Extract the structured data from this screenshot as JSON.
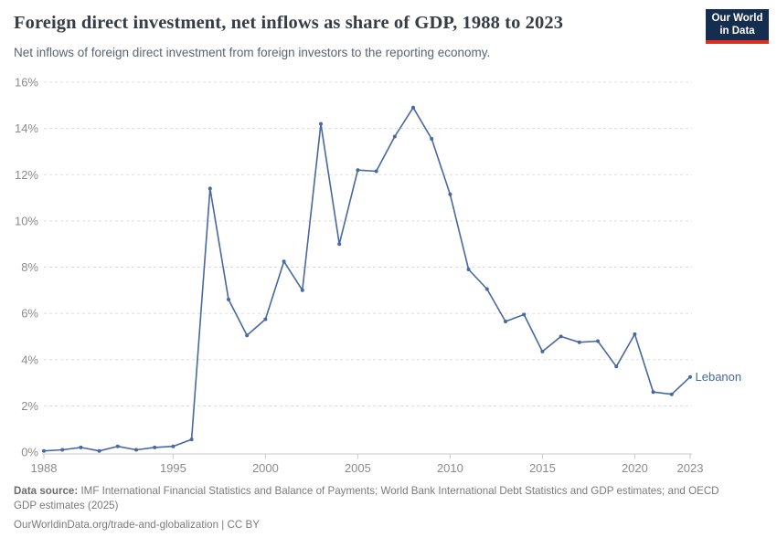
{
  "header": {
    "title": "Foreign direct investment, net inflows as share of GDP, 1988 to 2023",
    "subtitle": "Net inflows of foreign direct investment from foreign investors to the reporting economy.",
    "logo": {
      "line1": "Our World",
      "line2": "in Data"
    }
  },
  "chart_data": {
    "type": "line",
    "title": "Foreign direct investment, net inflows as share of GDP, 1988 to 2023",
    "entity_label": "Lebanon",
    "x": [
      1988,
      1989,
      1990,
      1991,
      1992,
      1993,
      1994,
      1995,
      1996,
      1997,
      1998,
      1999,
      2000,
      2001,
      2002,
      2003,
      2004,
      2005,
      2006,
      2007,
      2008,
      2009,
      2010,
      2011,
      2012,
      2013,
      2014,
      2015,
      2016,
      2017,
      2018,
      2019,
      2020,
      2021,
      2022,
      2023
    ],
    "series": [
      {
        "name": "Lebanon",
        "values": [
          0.05,
          0.1,
          0.2,
          0.05,
          0.25,
          0.1,
          0.2,
          0.25,
          0.55,
          11.4,
          6.6,
          5.05,
          5.75,
          8.25,
          7.0,
          14.2,
          9.0,
          12.2,
          12.15,
          13.65,
          14.9,
          13.55,
          11.15,
          7.9,
          7.05,
          5.65,
          5.95,
          4.35,
          5.0,
          4.75,
          4.8,
          3.7,
          5.1,
          2.6,
          2.5,
          3.25
        ]
      }
    ],
    "xlim": [
      1988,
      2023
    ],
    "ylim": [
      0,
      16
    ],
    "x_ticks": [
      1988,
      1995,
      2000,
      2005,
      2010,
      2015,
      2020,
      2023
    ],
    "y_ticks": [
      0,
      2,
      4,
      6,
      8,
      10,
      12,
      14,
      16
    ],
    "y_tick_suffix": "%",
    "grid": "horizontal-dashed",
    "legend_position": "end-of-line-label",
    "marker": "point"
  },
  "footer": {
    "source_label": "Data source:",
    "source_text": " IMF International Financial Statistics and Balance of Payments; World Bank International Debt Statistics and GDP estimates; and OECD GDP estimates (2025)",
    "link_line": "OurWorldinData.org/trade-and-globalization | CC BY"
  },
  "colors": {
    "line": "#4868a0",
    "entity_label": "#4868a0",
    "grid": "#dddddd",
    "axis": "#c9c9c9",
    "tick_text": "#8b8b8b",
    "title": "#363d45",
    "subtitle": "#5b6370",
    "footer_text": "#7a7a7a",
    "logo_bg": "#152d4e",
    "logo_red": "#dc2e1c"
  }
}
